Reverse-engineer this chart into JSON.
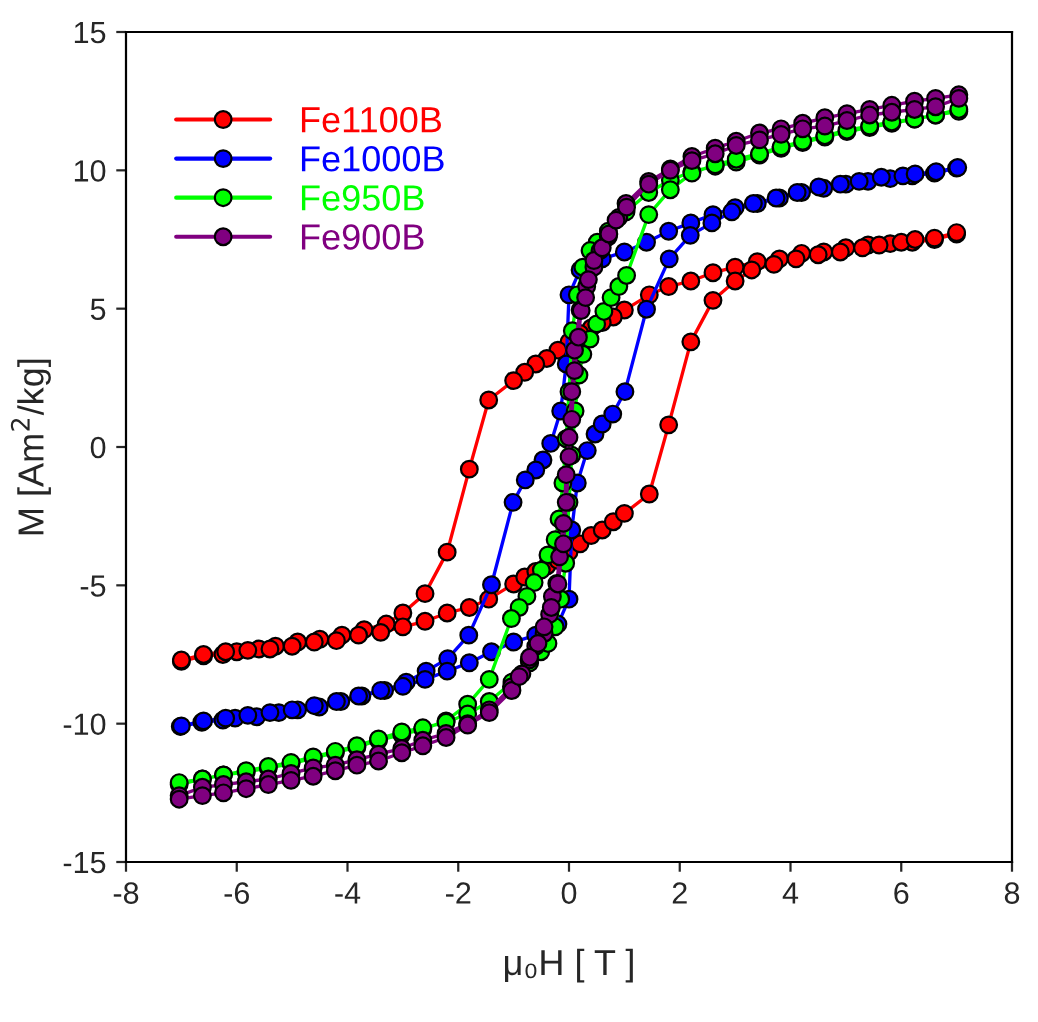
{
  "chart_data": {
    "type": "line",
    "xlabel": "μ₀H [ T ]",
    "ylabel": "M [Am$^{2}$/kg]",
    "xlim": [
      -8,
      8
    ],
    "xticks": [
      -8,
      -6,
      -4,
      -2,
      0,
      2,
      4,
      6,
      8
    ],
    "ylim": [
      -15,
      15
    ],
    "yticks": [
      -15,
      -10,
      -5,
      0,
      5,
      10,
      15
    ],
    "grid": false,
    "legend": "top left",
    "marker": "circle",
    "line_style": "solid",
    "series": [
      {
        "name": "Fe1100B",
        "color": "#ff0000",
        "x": [
          7,
          6.6,
          6.2,
          5.8,
          5.4,
          5.0,
          4.6,
          4.2,
          3.8,
          3.4,
          3.0,
          2.6,
          2.2,
          1.8,
          1.45,
          1.0,
          0.8,
          0.6,
          0.4,
          0.2,
          0,
          -0.2,
          -0.4,
          -0.6,
          -0.8,
          -1.0,
          -1.45,
          -1.8,
          -2.2,
          -2.6,
          -3.0,
          -3.3,
          -3.7,
          -4.1,
          -4.5,
          -4.9,
          -5.3,
          -5.6,
          -6.0,
          -6.25,
          -6.6,
          -7.0,
          -7,
          -6.6,
          -6.2,
          -5.8,
          -5.4,
          -5.0,
          -4.6,
          -4.2,
          -3.8,
          -3.4,
          -3.0,
          -2.6,
          -2.2,
          -1.8,
          -1.45,
          -1.0,
          -0.8,
          -0.6,
          -0.4,
          -0.2,
          0,
          0.2,
          0.4,
          0.6,
          0.8,
          1.0,
          1.45,
          1.8,
          2.2,
          2.6,
          3.0,
          3.3,
          3.7,
          4.1,
          4.5,
          4.9,
          5.3,
          5.6,
          6.0,
          6.25,
          6.6,
          7.0
        ],
        "values": [
          7.7,
          7.5,
          7.4,
          7.35,
          7.3,
          7.2,
          7.05,
          7.0,
          6.8,
          6.7,
          6.5,
          6.3,
          6.0,
          5.8,
          5.5,
          4.95,
          4.7,
          4.5,
          4.3,
          4.1,
          3.8,
          3.5,
          3.2,
          3.0,
          2.7,
          2.4,
          1.7,
          -0.8,
          -3.8,
          -5.3,
          -6.0,
          -6.4,
          -6.6,
          -6.8,
          -6.95,
          -7.05,
          -7.2,
          -7.3,
          -7.4,
          -7.5,
          -7.55,
          -7.75,
          -7.7,
          -7.5,
          -7.4,
          -7.35,
          -7.3,
          -7.2,
          -7.05,
          -7.0,
          -6.8,
          -6.7,
          -6.5,
          -6.3,
          -6.0,
          -5.8,
          -5.5,
          -4.95,
          -4.7,
          -4.5,
          -4.3,
          -4.1,
          -3.8,
          -3.5,
          -3.2,
          -3.0,
          -2.7,
          -2.4,
          -1.7,
          0.8,
          3.8,
          5.3,
          6.0,
          6.4,
          6.6,
          6.8,
          6.95,
          7.05,
          7.2,
          7.3,
          7.4,
          7.5,
          7.55,
          7.75
        ]
      },
      {
        "name": "Fe1000B",
        "color": "#0000ff",
        "x": [
          7,
          6.6,
          6.2,
          5.8,
          5.4,
          5.0,
          4.6,
          4.2,
          3.8,
          3.4,
          3.0,
          2.6,
          2.2,
          1.8,
          1.4,
          1.0,
          0.6,
          0.2,
          0,
          -0.05,
          -0.15,
          -0.33,
          -0.47,
          -0.6,
          -0.79,
          -1.01,
          -1.4,
          -1.81,
          -2.19,
          -2.58,
          -2.94,
          -3.33,
          -3.74,
          -4.12,
          -4.51,
          -4.9,
          -5.24,
          -5.64,
          -6.03,
          -6.25,
          -6.63,
          -7.02,
          -7,
          -6.6,
          -6.2,
          -5.8,
          -5.4,
          -5.0,
          -4.6,
          -4.2,
          -3.8,
          -3.4,
          -3.0,
          -2.6,
          -2.2,
          -1.8,
          -1.4,
          -1.0,
          -0.6,
          -0.2,
          0,
          0.05,
          0.15,
          0.33,
          0.47,
          0.6,
          0.79,
          1.01,
          1.4,
          1.81,
          2.19,
          2.58,
          2.94,
          3.33,
          3.74,
          4.12,
          4.51,
          4.9,
          5.24,
          5.64,
          6.03,
          6.25,
          6.63,
          7.02
        ],
        "values": [
          10.08,
          9.9,
          9.8,
          9.7,
          9.6,
          9.5,
          9.35,
          9.2,
          9.0,
          8.8,
          8.65,
          8.4,
          8.1,
          7.8,
          7.4,
          7.05,
          6.8,
          6.4,
          5.5,
          3.0,
          1.3,
          0.13,
          -0.47,
          -0.83,
          -1.19,
          -2.0,
          -4.98,
          -6.8,
          -7.65,
          -8.1,
          -8.5,
          -8.8,
          -9.0,
          -9.2,
          -9.4,
          -9.5,
          -9.6,
          -9.75,
          -9.8,
          -9.87,
          -9.95,
          -10.1,
          -10.08,
          -9.9,
          -9.8,
          -9.7,
          -9.6,
          -9.5,
          -9.35,
          -9.2,
          -9.0,
          -8.8,
          -8.65,
          -8.4,
          -8.1,
          -7.8,
          -7.4,
          -7.05,
          -6.8,
          -6.4,
          -5.5,
          -3.0,
          -1.3,
          -0.13,
          0.47,
          0.83,
          1.19,
          2.0,
          4.98,
          6.8,
          7.65,
          8.1,
          8.5,
          8.8,
          9.0,
          9.2,
          9.4,
          9.5,
          9.6,
          9.75,
          9.8,
          9.87,
          9.95,
          10.1
        ]
      },
      {
        "name": "Fe950B",
        "color": "#00ff00",
        "x": [
          7.04,
          6.62,
          6.24,
          5.83,
          5.43,
          5.02,
          4.62,
          4.22,
          3.83,
          3.44,
          3.02,
          2.64,
          2.22,
          1.83,
          1.44,
          1.03,
          0.71,
          0.51,
          0.38,
          0.25,
          0.15,
          0.06,
          0,
          -0.05,
          -0.11,
          -0.18,
          -0.25,
          -0.38,
          -0.5,
          -0.63,
          -0.76,
          -0.9,
          -1.04,
          -1.44,
          -1.83,
          -2.22,
          -2.64,
          -3.02,
          -3.44,
          -3.83,
          -4.22,
          -4.62,
          -5.02,
          -5.43,
          -5.83,
          -6.24,
          -6.62,
          -7.04,
          -7.04,
          -6.62,
          -6.24,
          -5.83,
          -5.43,
          -5.02,
          -4.62,
          -4.22,
          -3.83,
          -3.44,
          -3.02,
          -2.64,
          -2.22,
          -1.83,
          -1.44,
          -1.03,
          -0.71,
          -0.51,
          -0.38,
          -0.25,
          -0.15,
          -0.06,
          0,
          0.05,
          0.11,
          0.18,
          0.25,
          0.38,
          0.5,
          0.63,
          0.76,
          0.9,
          1.04,
          1.44,
          1.83,
          2.22,
          2.64,
          3.02,
          3.44,
          3.83,
          4.22,
          4.62,
          5.02,
          5.43,
          5.83,
          6.24,
          6.62,
          7.04
        ],
        "values": [
          12.13,
          12.0,
          11.85,
          11.7,
          11.55,
          11.4,
          11.2,
          11.0,
          10.8,
          10.55,
          10.3,
          10.15,
          9.95,
          9.65,
          9.2,
          8.5,
          7.8,
          7.4,
          7.1,
          6.5,
          5.5,
          4.2,
          2.0,
          0.3,
          -1.3,
          -2.6,
          -3.35,
          -3.9,
          -4.45,
          -4.9,
          -5.4,
          -5.8,
          -6.2,
          -8.4,
          -9.3,
          -9.9,
          -10.2,
          -10.4,
          -10.6,
          -10.85,
          -11.05,
          -11.25,
          -11.45,
          -11.6,
          -11.75,
          -11.85,
          -12.0,
          -12.2,
          -12.13,
          -12.0,
          -11.85,
          -11.7,
          -11.55,
          -11.4,
          -11.2,
          -11.0,
          -10.8,
          -10.55,
          -10.3,
          -10.15,
          -9.95,
          -9.65,
          -9.2,
          -8.5,
          -7.8,
          -7.4,
          -7.1,
          -6.5,
          -5.5,
          -4.2,
          -2.0,
          -0.3,
          1.3,
          2.6,
          3.35,
          3.9,
          4.45,
          4.9,
          5.4,
          5.8,
          6.2,
          8.4,
          9.3,
          9.9,
          10.2,
          10.4,
          10.6,
          10.85,
          11.05,
          11.25,
          11.45,
          11.6,
          11.75,
          11.85,
          12.0,
          12.2
        ]
      },
      {
        "name": "Fe900B",
        "color": "#800080",
        "x": [
          7.04,
          6.62,
          6.24,
          5.83,
          5.43,
          5.02,
          4.62,
          4.22,
          3.83,
          3.44,
          3.02,
          2.64,
          2.22,
          1.83,
          1.44,
          1.03,
          0.9,
          0.71,
          0.56,
          0.45,
          0.32,
          0.2,
          0.1,
          0.05,
          0,
          -0.05,
          -0.1,
          -0.17,
          -0.22,
          -0.3,
          -0.35,
          -0.45,
          -0.6,
          -0.72,
          -0.85,
          -1.04,
          -1.44,
          -1.83,
          -2.22,
          -2.64,
          -3.02,
          -3.44,
          -3.83,
          -4.22,
          -4.62,
          -5.02,
          -5.43,
          -5.83,
          -6.24,
          -6.62,
          -7.04,
          -7.04,
          -6.62,
          -6.24,
          -5.83,
          -5.43,
          -5.02,
          -4.62,
          -4.22,
          -3.83,
          -3.44,
          -3.02,
          -2.64,
          -2.22,
          -1.83,
          -1.44,
          -1.03,
          -0.9,
          -0.71,
          -0.56,
          -0.45,
          -0.32,
          -0.2,
          -0.1,
          -0.05,
          0,
          0.05,
          0.1,
          0.17,
          0.22,
          0.3,
          0.35,
          0.45,
          0.6,
          0.72,
          0.85,
          1.04,
          1.44,
          1.83,
          2.22,
          2.64,
          3.02,
          3.44,
          3.83,
          4.22,
          4.62,
          5.02,
          5.43,
          5.83,
          6.24,
          6.62,
          7.04
        ],
        "values": [
          12.73,
          12.6,
          12.5,
          12.35,
          12.2,
          12.05,
          11.9,
          11.7,
          11.5,
          11.35,
          11.05,
          10.8,
          10.5,
          10.05,
          9.6,
          8.8,
          8.3,
          7.6,
          7.1,
          6.5,
          5.8,
          4.95,
          3.5,
          2.0,
          0.35,
          -1.0,
          -2.76,
          -3.97,
          -4.93,
          -5.4,
          -6.05,
          -6.74,
          -7.2,
          -7.7,
          -8.2,
          -8.67,
          -9.5,
          -10.0,
          -10.35,
          -10.6,
          -10.9,
          -11.1,
          -11.3,
          -11.5,
          -11.6,
          -11.8,
          -12.0,
          -12.1,
          -12.2,
          -12.3,
          -12.6,
          -12.73,
          -12.6,
          -12.5,
          -12.35,
          -12.2,
          -12.05,
          -11.9,
          -11.7,
          -11.5,
          -11.35,
          -11.05,
          -10.8,
          -10.5,
          -10.05,
          -9.6,
          -8.8,
          -8.3,
          -7.6,
          -7.1,
          -6.5,
          -5.8,
          -4.95,
          -3.5,
          -2.0,
          -0.35,
          1.0,
          2.76,
          3.97,
          4.93,
          5.4,
          6.05,
          6.74,
          7.2,
          7.7,
          8.2,
          8.67,
          9.5,
          10.0,
          10.35,
          10.6,
          10.9,
          11.1,
          11.3,
          11.5,
          11.6,
          11.8,
          12.0,
          12.1,
          12.2,
          12.3,
          12.6
        ]
      }
    ]
  }
}
